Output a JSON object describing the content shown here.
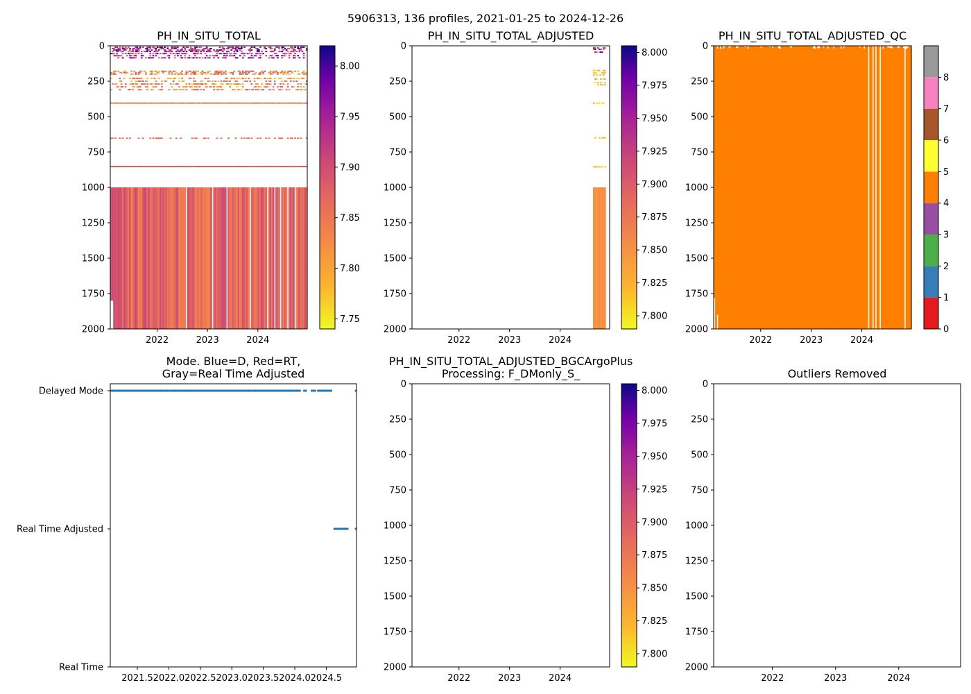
{
  "figure_title": "5906313, 136 profiles, 2021-01-25 to 2024-12-26",
  "colors": {
    "qc_orange": "#ff7f00",
    "mode_blue": "#1f77b4",
    "nan": "#ffffff"
  },
  "chart_data": [
    {
      "id": "p1",
      "type": "heatmap",
      "title": "PH_IN_SITU_TOTAL",
      "xlabel": "",
      "ylabel": "",
      "xlim": [
        2021.07,
        2024.98
      ],
      "ylim": [
        2000,
        0
      ],
      "xticks": [
        2022,
        2023,
        2024
      ],
      "yticks": [
        0,
        250,
        500,
        750,
        1000,
        1250,
        1500,
        1750,
        2000
      ],
      "colormap": "plasma_r",
      "clim": [
        7.74,
        8.02
      ],
      "colorbar_ticks": [
        7.75,
        7.8,
        7.85,
        7.9,
        7.95,
        8.0
      ],
      "profiles": 136,
      "summary": {
        "sparse_0_150m": "mixed 7.85-8.02",
        "sparse_150_400m": "7.78-7.90",
        "dense_1000_2000m": "7.83-7.91"
      }
    },
    {
      "id": "p2",
      "type": "heatmap",
      "title": "PH_IN_SITU_TOTAL_ADJUSTED",
      "xlabel": "",
      "ylabel": "",
      "xlim": [
        2021.07,
        2024.98
      ],
      "ylim": [
        2000,
        0
      ],
      "xticks": [
        2022,
        2023,
        2024
      ],
      "yticks": [
        0,
        250,
        500,
        750,
        1000,
        1250,
        1500,
        1750,
        2000
      ],
      "colormap": "plasma_r",
      "clim": [
        7.79,
        8.005
      ],
      "colorbar_ticks": [
        7.8,
        7.825,
        7.85,
        7.875,
        7.9,
        7.925,
        7.95,
        7.975,
        8.0
      ],
      "data_span": [
        2024.65,
        2024.9
      ],
      "summary": {
        "deep_value": 7.85
      }
    },
    {
      "id": "p3",
      "type": "heatmap",
      "title": "PH_IN_SITU_TOTAL_ADJUSTED_QC",
      "xlabel": "",
      "ylabel": "",
      "xlim": [
        2021.07,
        2024.98
      ],
      "ylim": [
        2000,
        0
      ],
      "xticks": [
        2022,
        2023,
        2024
      ],
      "yticks": [
        0,
        250,
        500,
        750,
        1000,
        1250,
        1500,
        1750,
        2000
      ],
      "colorbar_ticks": [
        "0",
        "1",
        "2",
        "3",
        "4",
        "5",
        "6",
        "7",
        "8"
      ],
      "qc_colors": [
        "#e41a1c",
        "#377eb8",
        "#4daf4a",
        "#984ea3",
        "#ff7f00",
        "#ffff33",
        "#a65628",
        "#f781bf",
        "#999999"
      ],
      "dominant_flag": 4,
      "gap_dates": [
        2024.12,
        2024.2,
        2024.27,
        2024.35,
        2024.83
      ]
    },
    {
      "id": "p4",
      "type": "scatter",
      "title_lines": [
        "Mode. Blue=D, Red=RT,",
        "Gray=Real Time Adjusted"
      ],
      "xlim": [
        2021.07,
        2024.98
      ],
      "xticks": [
        "2021.5",
        "2022.0",
        "2022.5",
        "2023.0",
        "2023.5",
        "2024.0",
        "2024.5"
      ],
      "xtick_values": [
        2021.5,
        2022.0,
        2022.5,
        2023.0,
        2023.5,
        2024.0,
        2024.5
      ],
      "yticks": [
        "Real Time",
        "Real Time Adjusted",
        "Delayed Mode"
      ],
      "series": [
        {
          "name": "Delayed Mode",
          "level": 2,
          "ranges": [
            [
              2021.09,
              2024.1
            ],
            [
              2024.15,
              2024.2
            ],
            [
              2024.27,
              2024.33
            ],
            [
              2024.37,
              2024.59
            ]
          ],
          "extra": [
            2024.97
          ]
        },
        {
          "name": "Real Time Adjusted",
          "level": 1,
          "ranges": [
            [
              2024.63,
              2024.85
            ]
          ],
          "extra": [
            2024.97
          ]
        }
      ]
    },
    {
      "id": "p5",
      "type": "heatmap",
      "title_lines": [
        "PH_IN_SITU_TOTAL_ADJUSTED_BGCArgoPlus",
        "Processing: F_DMonly_S_"
      ],
      "xlim": [
        2021.07,
        2024.98
      ],
      "ylim": [
        2000,
        0
      ],
      "xticks": [
        2022,
        2023,
        2024
      ],
      "yticks": [
        0,
        250,
        500,
        750,
        1000,
        1250,
        1500,
        1750,
        2000
      ],
      "colormap": "plasma_r",
      "clim": [
        7.79,
        8.005
      ],
      "colorbar_ticks": [
        7.8,
        7.825,
        7.85,
        7.875,
        7.9,
        7.925,
        7.95,
        7.975,
        8.0
      ],
      "values": []
    },
    {
      "id": "p6",
      "type": "scatter",
      "title": "Outliers Removed",
      "xlim": [
        2021.07,
        2024.98
      ],
      "ylim": [
        2000,
        0
      ],
      "xticks": [
        2022,
        2023,
        2024
      ],
      "yticks": [
        0,
        250,
        500,
        750,
        1000,
        1250,
        1500,
        1750,
        2000
      ],
      "values": []
    }
  ]
}
